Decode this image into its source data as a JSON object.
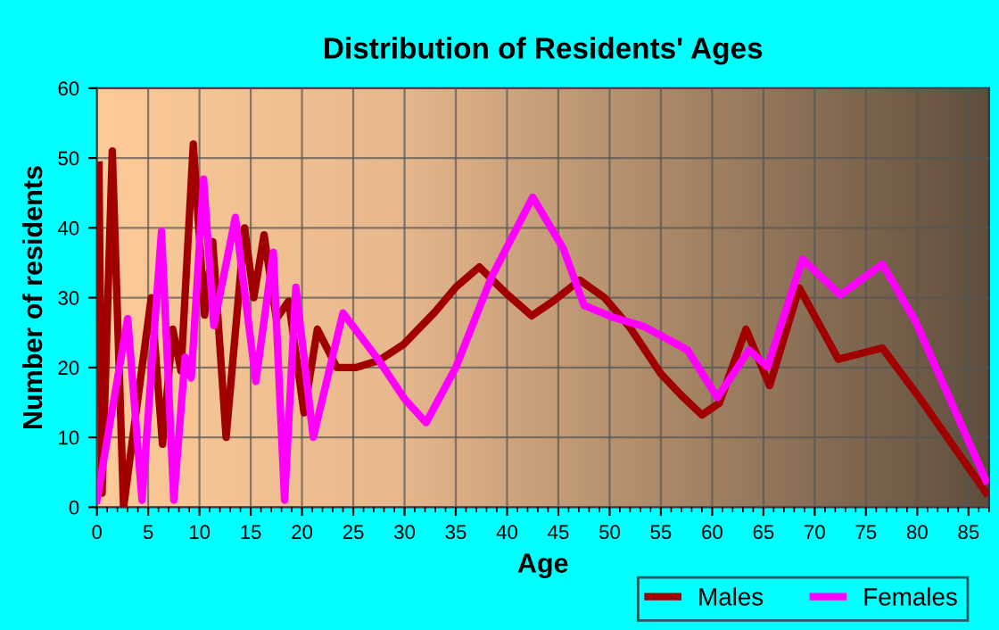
{
  "chart_data": {
    "type": "line",
    "title": "Distribution of Residents' Ages",
    "xlabel": "Age",
    "ylabel": "Number of residents",
    "xlim": [
      0,
      87
    ],
    "xticks": [
      0,
      5,
      10,
      15,
      20,
      25,
      30,
      35,
      40,
      45,
      50,
      55,
      60,
      65,
      70,
      75,
      80,
      85
    ],
    "ylim": [
      0,
      60
    ],
    "yticks": [
      0,
      10,
      20,
      30,
      40,
      50,
      60
    ],
    "grid": true,
    "legend": "bottom right",
    "marker": "none",
    "line_style": "solid",
    "series": [
      {
        "name": "Males",
        "color": "#a00000",
        "x": [
          0.2,
          0.5,
          1.5,
          2.6,
          5.3,
          6.4,
          7.4,
          8.2,
          9.4,
          10.5,
          11.3,
          12.6,
          14.4,
          15.3,
          16.3,
          17.5,
          18.7,
          20.2,
          21.5,
          23.4,
          25.3,
          27.5,
          29.9,
          33,
          35,
          37.3,
          40,
          42.4,
          44.5,
          47.1,
          49.5,
          51.9,
          55,
          57,
          59,
          60.7,
          63.3,
          65.6,
          68.5,
          72.3,
          76.6,
          80.4,
          86.7
        ],
        "values": [
          49,
          2,
          51,
          0,
          30,
          9,
          25.5,
          19.5,
          52,
          27.5,
          38,
          10,
          40,
          30,
          39,
          27,
          29.5,
          13.5,
          25.5,
          20,
          20,
          21,
          23.3,
          28,
          31.5,
          34.4,
          30.5,
          27.4,
          29.5,
          32.5,
          30,
          25.9,
          19.1,
          16,
          13.2,
          14.9,
          25.5,
          17.4,
          31.4,
          21.2,
          22.8,
          15.3,
          2.1
        ]
      },
      {
        "name": "Females",
        "color": "#ff00ff",
        "x": [
          0,
          3,
          4.4,
          6.3,
          7.5,
          8.6,
          9.2,
          10.4,
          11.4,
          13.5,
          15.5,
          17.2,
          18.3,
          19.4,
          21.1,
          24,
          27.5,
          30,
          32.1,
          35,
          38.5,
          42.5,
          45.5,
          47.5,
          50.3,
          53.3,
          57.6,
          60.5,
          63.6,
          65.4,
          68.8,
          72.5,
          76.6,
          79.8,
          86.7
        ],
        "values": [
          1,
          27,
          1,
          39.5,
          1,
          21.5,
          18.5,
          47,
          26,
          41.5,
          18,
          36.5,
          1,
          31.5,
          10,
          27.8,
          21,
          15.5,
          12.1,
          20,
          33,
          44.4,
          37,
          28.9,
          27.2,
          25.9,
          22.5,
          15.7,
          22.5,
          20.1,
          35.5,
          30.4,
          34.8,
          26.7,
          3.8
        ]
      }
    ]
  }
}
